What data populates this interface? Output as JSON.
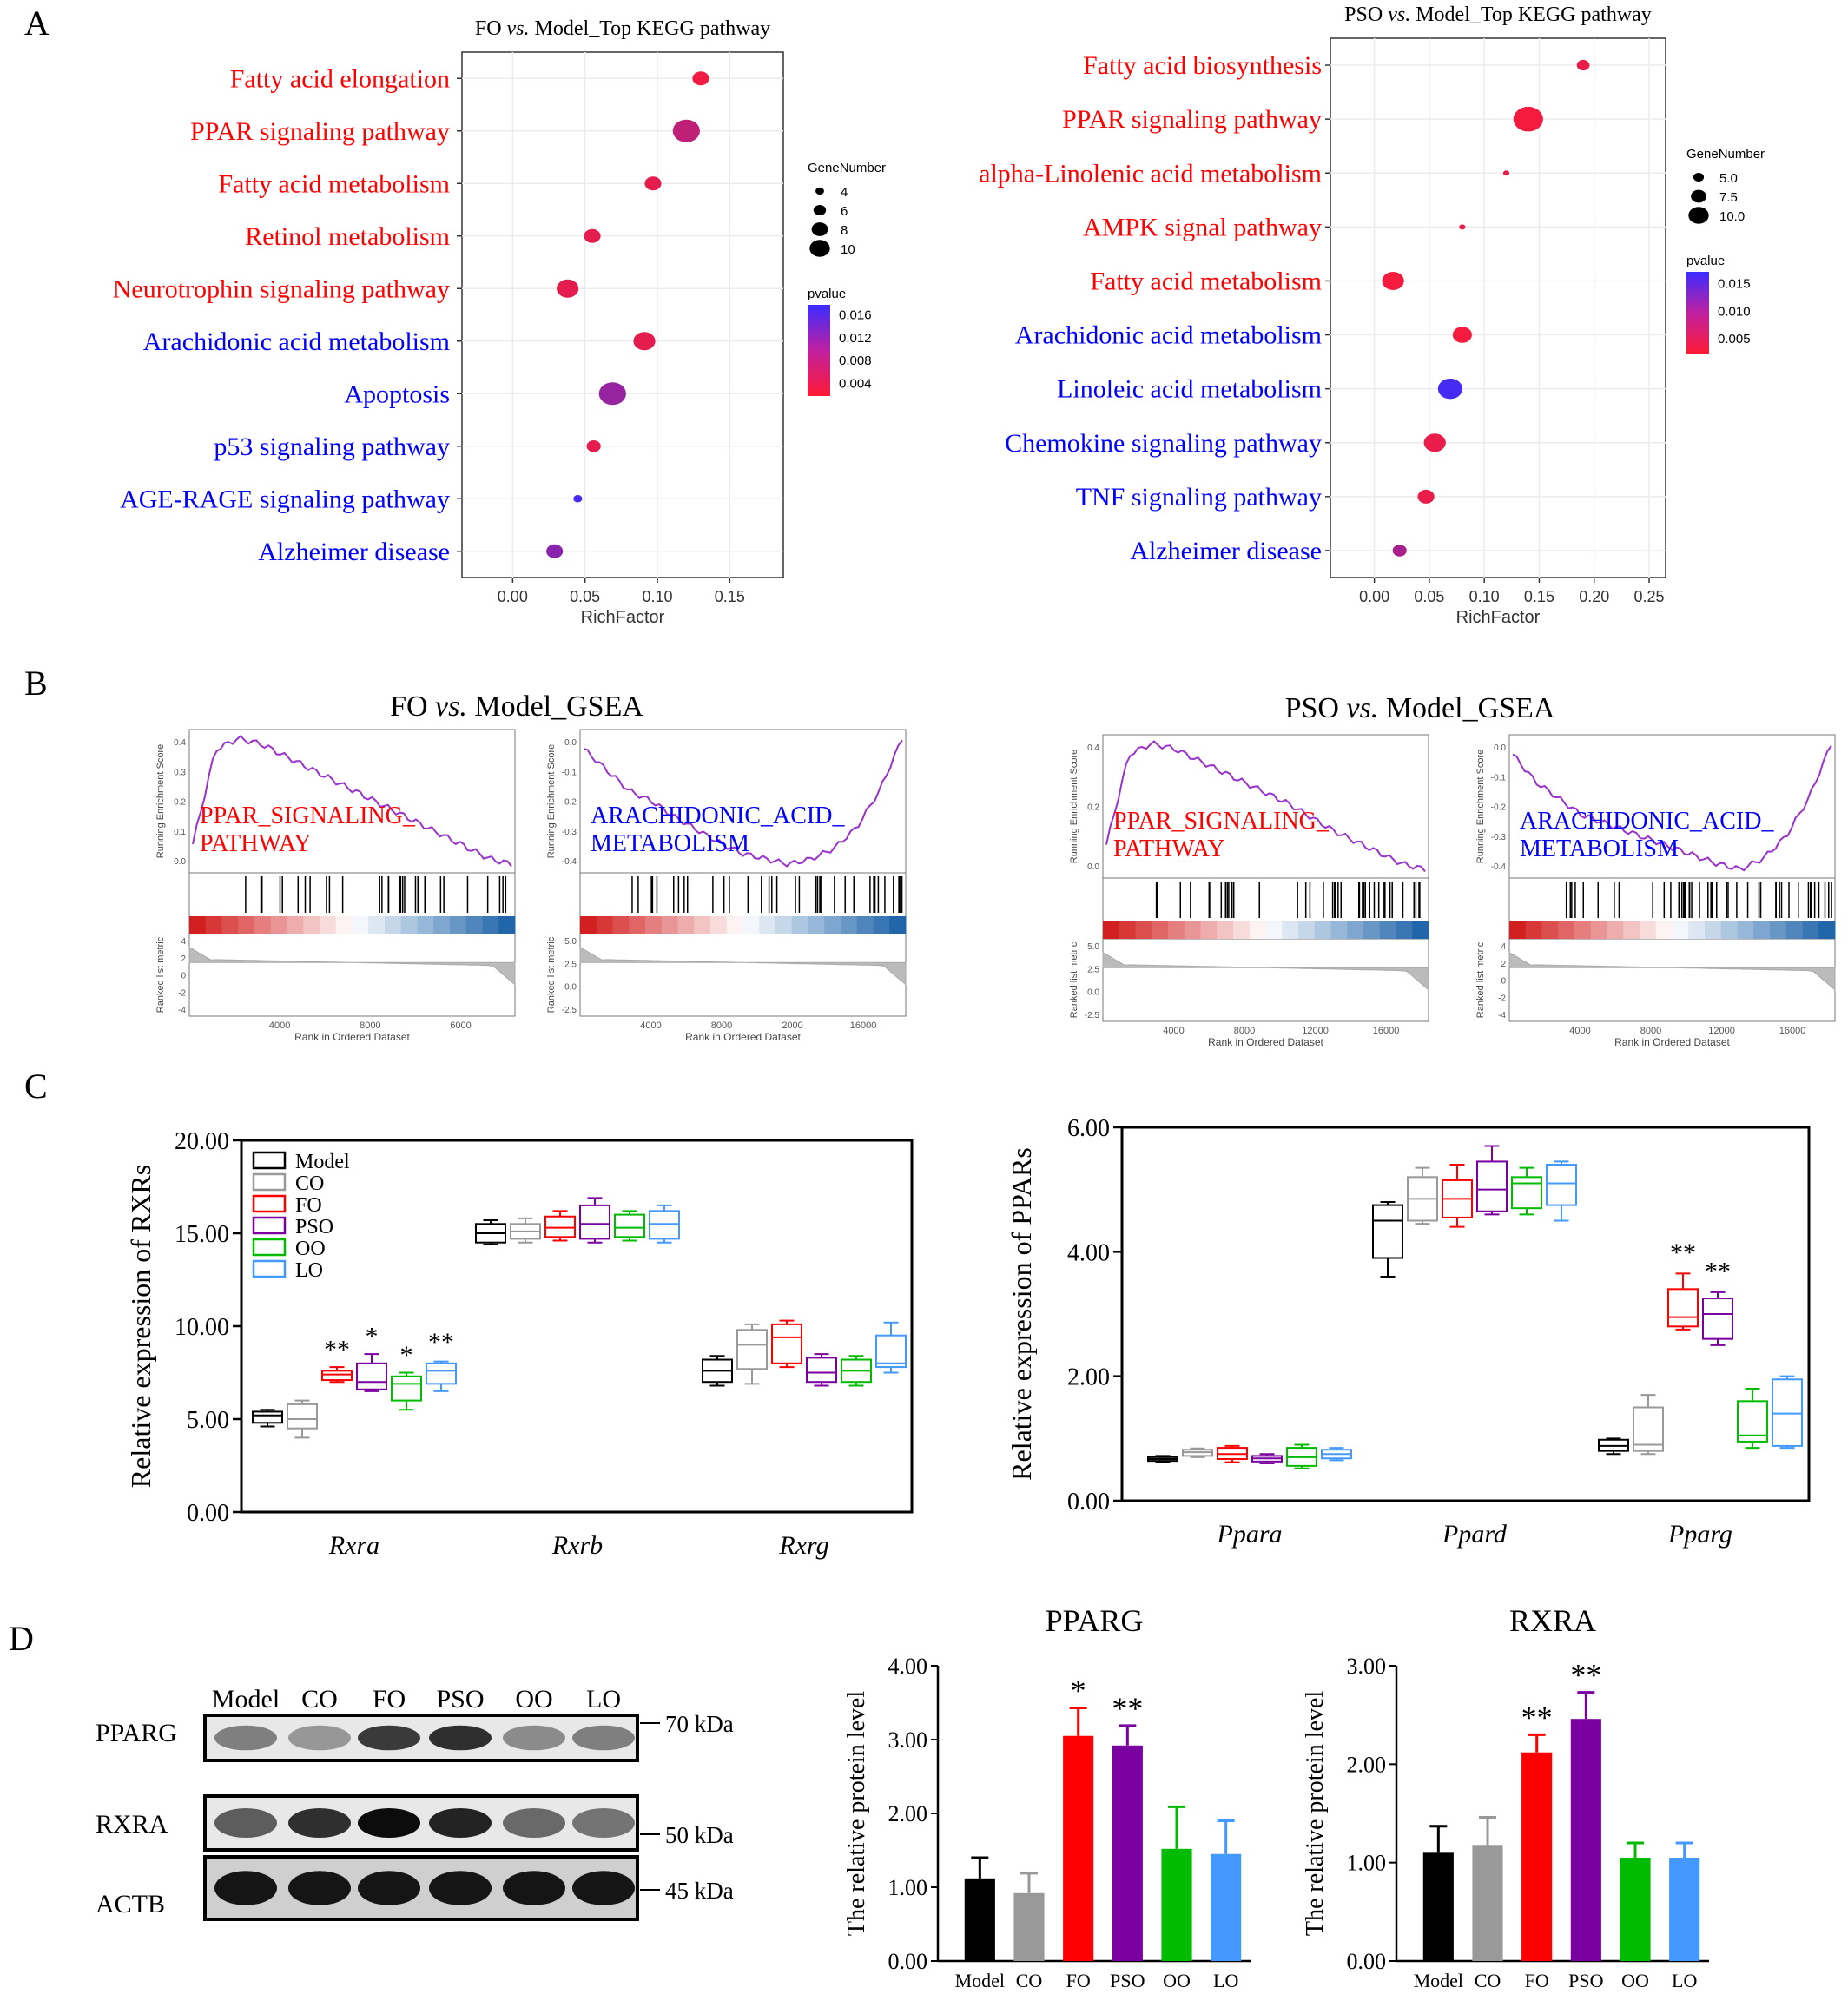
{
  "panel_letters": [
    "A",
    "B",
    "C",
    "D"
  ],
  "colors": {
    "red": "#ff0000",
    "blue": "#0000ff",
    "gsea_line": "#9932cc",
    "pval_high": "#3b2cff",
    "pval_low": "#ff1a33",
    "model": "#000000",
    "CO": "#999999",
    "FO": "#ff0000",
    "PSO": "#7b00a0",
    "OO": "#00bb00",
    "LO": "#4499ff"
  },
  "chart_data": [
    {
      "id": "A-left",
      "type": "scatter",
      "title": "FO vs. Model_Top KEGG pathway",
      "title_parts": [
        "FO ",
        "vs.",
        " Model_Top KEGG pathway"
      ],
      "xlabel": "RichFactor",
      "xticks": [
        "0.00",
        "0.05",
        "0.10",
        "0.15"
      ],
      "xlim": [
        -0.035,
        0.187
      ],
      "pathways": [
        {
          "name": "Fatty acid elongation",
          "color": "red",
          "x": 0.13,
          "gene_number": 6,
          "pvalue": 0.003
        },
        {
          "name": "PPAR signaling pathway",
          "color": "red",
          "x": 0.12,
          "gene_number": 10,
          "pvalue": 0.007
        },
        {
          "name": "Fatty acid metabolism",
          "color": "red",
          "x": 0.097,
          "gene_number": 6,
          "pvalue": 0.004
        },
        {
          "name": "Retinol metabolism",
          "color": "red",
          "x": 0.055,
          "gene_number": 6,
          "pvalue": 0.004
        },
        {
          "name": "Neurotrophin signaling pathway",
          "color": "red",
          "x": 0.038,
          "gene_number": 8,
          "pvalue": 0.004
        },
        {
          "name": "Arachidonic acid metabolism",
          "color": "blue",
          "x": 0.091,
          "gene_number": 8,
          "pvalue": 0.004
        },
        {
          "name": "Apoptosis",
          "color": "blue",
          "x": 0.069,
          "gene_number": 10,
          "pvalue": 0.01
        },
        {
          "name": "p53 signaling pathway",
          "color": "blue",
          "x": 0.056,
          "gene_number": 5,
          "pvalue": 0.004
        },
        {
          "name": "AGE-RAGE signaling pathway",
          "color": "blue",
          "x": 0.045,
          "gene_number": 3,
          "pvalue": 0.016
        },
        {
          "name": "Alzheimer disease",
          "color": "blue",
          "x": 0.029,
          "gene_number": 6,
          "pvalue": 0.011
        }
      ],
      "size_legend": {
        "title": "GeneNumber",
        "values": [
          4,
          6,
          8,
          10
        ],
        "labels": [
          "4",
          "6",
          "8",
          "10"
        ]
      },
      "color_legend": {
        "title": "pvalue",
        "labels": [
          "0.016",
          "0.012",
          "0.008",
          "0.004"
        ],
        "range": [
          0.002,
          0.017
        ]
      }
    },
    {
      "id": "A-right",
      "type": "scatter",
      "title": "PSO vs. Model_Top KEGG pathway",
      "title_parts": [
        "PSO ",
        "vs.",
        " Model_Top KEGG pathway"
      ],
      "xlabel": "RichFactor",
      "xticks": [
        "0.00",
        "0.05",
        "0.10",
        "0.15",
        "0.20",
        "0.25"
      ],
      "xlim": [
        -0.04,
        0.265
      ],
      "pathways": [
        {
          "name": "Fatty acid biosynthesis",
          "color": "red",
          "x": 0.19,
          "gene_number": 4.5,
          "pvalue": 0.003
        },
        {
          "name": "PPAR signaling pathway",
          "color": "red",
          "x": 0.14,
          "gene_number": 11,
          "pvalue": 0.002
        },
        {
          "name": "alpha-Linolenic acid metabolism",
          "color": "red",
          "x": 0.12,
          "gene_number": 2,
          "pvalue": 0.003
        },
        {
          "name": "AMPK signal pathway",
          "color": "red",
          "x": 0.08,
          "gene_number": 2,
          "pvalue": 0.003
        },
        {
          "name": "Fatty acid metabolism",
          "color": "red",
          "x": 0.017,
          "gene_number": 8,
          "pvalue": 0.002
        },
        {
          "name": "Arachidonic acid metabolism",
          "color": "blue",
          "x": 0.08,
          "gene_number": 7,
          "pvalue": 0.002
        },
        {
          "name": "Linoleic acid metabolism",
          "color": "blue",
          "x": 0.069,
          "gene_number": 9,
          "pvalue": 0.018
        },
        {
          "name": "Chemokine signaling pathway",
          "color": "blue",
          "x": 0.055,
          "gene_number": 8,
          "pvalue": 0.003
        },
        {
          "name": "TNF signaling pathway",
          "color": "blue",
          "x": 0.047,
          "gene_number": 6,
          "pvalue": 0.003
        },
        {
          "name": "Alzheimer disease",
          "color": "blue",
          "x": 0.023,
          "gene_number": 5,
          "pvalue": 0.009
        }
      ],
      "size_legend": {
        "title": "GeneNumber",
        "values": [
          5,
          7.5,
          10
        ],
        "labels": [
          "5.0",
          "7.5",
          "10.0"
        ]
      },
      "color_legend": {
        "title": "pvalue",
        "labels": [
          "0.015",
          "0.010",
          "0.005"
        ],
        "range": [
          0.001,
          0.019
        ]
      }
    },
    {
      "id": "C-left",
      "type": "box",
      "ylabel": "Relative expression of RXRs",
      "ylim": [
        0,
        20
      ],
      "yticks": [
        "0.00",
        "5.00",
        "10.00",
        "15.00",
        "20.00"
      ],
      "categories": [
        "Rxra",
        "Rxrb",
        "Rxrg"
      ],
      "groups": [
        "Model",
        "CO",
        "FO",
        "PSO",
        "OO",
        "LO"
      ],
      "boxes": [
        [
          [
            4.6,
            4.8,
            5.2,
            5.4,
            5.5
          ],
          [
            4.0,
            4.5,
            5.0,
            5.8,
            6.0
          ],
          [
            7.0,
            7.1,
            7.4,
            7.6,
            7.8
          ],
          [
            6.5,
            6.6,
            7.0,
            8.0,
            8.5
          ],
          [
            5.5,
            6.0,
            6.9,
            7.3,
            7.5
          ],
          [
            6.5,
            6.9,
            7.6,
            8.0,
            8.1
          ]
        ],
        [
          [
            14.4,
            14.5,
            15.0,
            15.5,
            15.7
          ],
          [
            14.5,
            14.7,
            15.1,
            15.5,
            15.8
          ],
          [
            14.6,
            14.8,
            15.3,
            15.9,
            16.2
          ],
          [
            14.5,
            14.7,
            15.5,
            16.5,
            16.9
          ],
          [
            14.6,
            14.8,
            15.3,
            16.0,
            16.2
          ],
          [
            14.5,
            14.7,
            15.5,
            16.2,
            16.5
          ]
        ],
        [
          [
            6.8,
            7.0,
            7.6,
            8.2,
            8.4
          ],
          [
            6.9,
            7.7,
            9.0,
            9.8,
            10.1
          ],
          [
            7.8,
            8.0,
            9.4,
            10.1,
            10.3
          ],
          [
            6.8,
            7.0,
            7.5,
            8.3,
            8.5
          ],
          [
            6.8,
            7.0,
            7.6,
            8.2,
            8.4
          ],
          [
            7.5,
            7.8,
            8.0,
            9.5,
            10.2
          ]
        ]
      ],
      "annotations": [
        {
          "category": 0,
          "group": 2,
          "text": "**",
          "y": 8.3
        },
        {
          "category": 0,
          "group": 3,
          "text": "*",
          "y": 9.0
        },
        {
          "category": 0,
          "group": 4,
          "text": "*",
          "y": 8.0
        },
        {
          "category": 0,
          "group": 5,
          "text": "**",
          "y": 8.7
        }
      ],
      "legend": [
        "Model",
        "CO",
        "FO",
        "PSO",
        "OO",
        "LO"
      ]
    },
    {
      "id": "C-right",
      "type": "box",
      "ylabel": "Relative expression of PPARs",
      "ylim": [
        0,
        6
      ],
      "yticks": [
        "0.00",
        "2.00",
        "4.00",
        "6.00"
      ],
      "categories": [
        "Ppara",
        "Ppard",
        "Pparg"
      ],
      "groups": [
        "Model",
        "CO",
        "FO",
        "PSO",
        "OO",
        "LO"
      ],
      "boxes": [
        [
          [
            0.62,
            0.64,
            0.67,
            0.7,
            0.72
          ],
          [
            0.7,
            0.72,
            0.78,
            0.82,
            0.84
          ],
          [
            0.62,
            0.67,
            0.75,
            0.85,
            0.88
          ],
          [
            0.6,
            0.63,
            0.68,
            0.72,
            0.75
          ],
          [
            0.52,
            0.56,
            0.7,
            0.85,
            0.9
          ],
          [
            0.65,
            0.68,
            0.75,
            0.82,
            0.85
          ]
        ],
        [
          [
            3.6,
            3.9,
            4.5,
            4.75,
            4.8
          ],
          [
            4.45,
            4.5,
            4.85,
            5.2,
            5.35
          ],
          [
            4.4,
            4.55,
            4.85,
            5.15,
            5.4
          ],
          [
            4.6,
            4.65,
            5.0,
            5.45,
            5.7
          ],
          [
            4.6,
            4.7,
            5.1,
            5.2,
            5.35
          ],
          [
            4.5,
            4.75,
            5.1,
            5.4,
            5.45
          ]
        ],
        [
          [
            0.75,
            0.8,
            0.88,
            0.98,
            1.0
          ],
          [
            0.75,
            0.8,
            0.9,
            1.5,
            1.7
          ],
          [
            2.75,
            2.8,
            2.95,
            3.4,
            3.65
          ],
          [
            2.5,
            2.6,
            3.0,
            3.25,
            3.35
          ],
          [
            0.85,
            0.95,
            1.05,
            1.6,
            1.8
          ],
          [
            0.85,
            0.88,
            1.4,
            1.95,
            2.0
          ]
        ]
      ],
      "annotations": [
        {
          "category": 2,
          "group": 2,
          "text": "**",
          "y": 3.85
        },
        {
          "category": 2,
          "group": 3,
          "text": "**",
          "y": 3.55
        }
      ]
    },
    {
      "id": "D-PPARG",
      "type": "bar",
      "title": "PPARG",
      "ylabel": "The relative protein level",
      "ylim": [
        0,
        4
      ],
      "yticks": [
        "0.00",
        "1.00",
        "2.00",
        "3.00",
        "4.00"
      ],
      "categories": [
        "Model",
        "CO",
        "FO",
        "PSO",
        "OO",
        "LO"
      ],
      "values": [
        1.12,
        0.92,
        3.05,
        2.92,
        1.52,
        1.45
      ],
      "errors": [
        0.28,
        0.27,
        0.38,
        0.27,
        0.57,
        0.45
      ],
      "annotations": [
        "",
        "",
        "*",
        "**",
        "",
        ""
      ]
    },
    {
      "id": "D-RXRA",
      "type": "bar",
      "title": "RXRA",
      "ylabel": "The relative protein level",
      "ylim": [
        0,
        3
      ],
      "yticks": [
        "0.00",
        "1.00",
        "2.00",
        "3.00"
      ],
      "categories": [
        "Model",
        "CO",
        "FO",
        "PSO",
        "OO",
        "LO"
      ],
      "values": [
        1.1,
        1.18,
        2.12,
        2.46,
        1.05,
        1.05
      ],
      "errors": [
        0.27,
        0.28,
        0.18,
        0.27,
        0.15,
        0.15
      ],
      "annotations": [
        "",
        "",
        "**",
        "**",
        "",
        ""
      ]
    }
  ],
  "gsea": {
    "left_title_parts": [
      "FO ",
      "vs.",
      " Model_GSEA"
    ],
    "right_title_parts": [
      "PSO ",
      "vs.",
      " Model_GSEA"
    ],
    "panels": [
      {
        "pathway_line1": "PPAR_SIGNALING_",
        "pathway_line2": "PATHWAY",
        "color": "red",
        "es_label": "Running Enrichment Score",
        "metric_label": "Ranked list metric",
        "xlabel": "Rank in Ordered Dataset",
        "xticks": [
          "4000",
          "8000",
          "6000"
        ],
        "es_ticks": [
          "0.4",
          "0.3",
          "0.2",
          "0.1",
          "0.0"
        ],
        "metric_ticks": [
          "4",
          "2",
          "0",
          "-2",
          "-4"
        ],
        "es_curve": [
          0.05,
          0.38,
          0.42,
          0.4,
          0.36,
          0.32,
          0.28,
          0.24,
          0.2,
          0.16,
          0.12,
          0.08,
          0.04,
          0.0,
          -0.02
        ]
      },
      {
        "pathway_line1": "ARACHIDONIC_ACID_",
        "pathway_line2": "METABOLISM",
        "color": "blue",
        "es_label": "Running Enrichment Score",
        "metric_label": "Ranked list metric",
        "xlabel": "Rank in Ordered Dataset",
        "xticks": [
          "4000",
          "8000",
          "2000",
          "16000"
        ],
        "es_ticks": [
          "0.0",
          "-0.1",
          "-0.2",
          "-0.3",
          "-0.4"
        ],
        "metric_ticks": [
          "5.0",
          "2.5",
          "0.0",
          "-2.5"
        ],
        "es_curve": [
          -0.02,
          -0.1,
          -0.18,
          -0.22,
          -0.28,
          -0.33,
          -0.38,
          -0.42,
          -0.44,
          -0.46,
          -0.44,
          -0.4,
          -0.32,
          -0.18,
          0.02
        ]
      },
      {
        "pathway_line1": "PPAR_SIGNALING_",
        "pathway_line2": "PATHWAY",
        "color": "red",
        "es_label": "Running Enrichment Score",
        "metric_label": "Ranked list metric",
        "xlabel": "Rank in Ordered Dataset",
        "xticks": [
          "4000",
          "8000",
          "12000",
          "16000"
        ],
        "es_ticks": [
          "0.4",
          "0.2",
          "0.0"
        ],
        "metric_ticks": [
          "5.0",
          "2.5",
          "0.0",
          "-2.5"
        ],
        "es_curve": [
          0.05,
          0.38,
          0.42,
          0.4,
          0.36,
          0.32,
          0.28,
          0.24,
          0.2,
          0.15,
          0.1,
          0.06,
          0.02,
          -0.02,
          -0.04
        ]
      },
      {
        "pathway_line1": "ARACHIDONIC_ACID_",
        "pathway_line2": "METABOLISM",
        "color": "blue",
        "es_label": "Running Enrichment Score",
        "metric_label": "Ranked list metric",
        "xlabel": "Rank in Ordered Dataset",
        "xticks": [
          "4000",
          "8000",
          "12000",
          "16000"
        ],
        "es_ticks": [
          "0.0",
          "-0.1",
          "-0.2",
          "-0.3",
          "-0.4"
        ],
        "metric_ticks": [
          "4",
          "2",
          "0",
          "-2",
          "-4"
        ],
        "es_curve": [
          -0.02,
          -0.12,
          -0.18,
          -0.24,
          -0.27,
          -0.3,
          -0.33,
          -0.36,
          -0.39,
          -0.42,
          -0.44,
          -0.4,
          -0.32,
          -0.18,
          0.02
        ]
      }
    ]
  },
  "western_blot": {
    "lanes": [
      "Model",
      "CO",
      "FO",
      "PSO",
      "OO",
      "LO"
    ],
    "proteins": [
      "PPARG",
      "RXRA",
      "ACTB"
    ],
    "markers": [
      "70 kDa",
      "50 kDa",
      "45 kDa"
    ],
    "intensity": [
      [
        0.45,
        0.35,
        0.75,
        0.8,
        0.4,
        0.45
      ],
      [
        0.6,
        0.8,
        0.95,
        0.85,
        0.55,
        0.5
      ],
      [
        0.9,
        0.9,
        0.9,
        0.9,
        0.9,
        0.9
      ]
    ]
  }
}
